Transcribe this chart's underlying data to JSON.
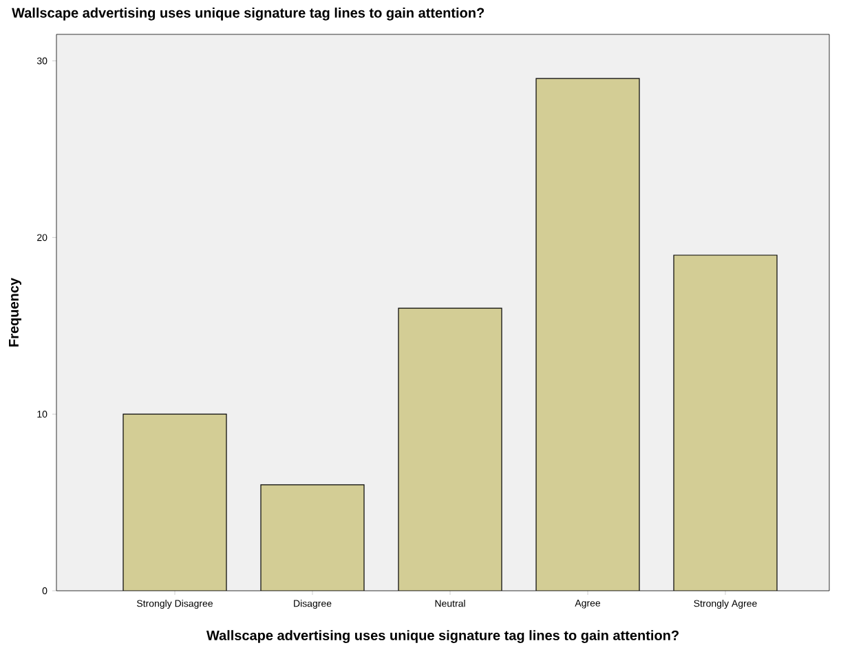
{
  "chart_data": {
    "type": "bar",
    "title": "Wallscape advertising uses unique signature tag lines to gain attention?",
    "xlabel": "Wallscape advertising uses unique signature tag lines to gain attention?",
    "ylabel": "Frequency",
    "categories": [
      "Strongly Disagree",
      "Disagree",
      "Neutral",
      "Agree",
      "Strongly Agree"
    ],
    "values": [
      10,
      6,
      16,
      29,
      19
    ],
    "color": "#d3cd95",
    "ylim": [
      0,
      31.5
    ],
    "yticks": [
      0,
      10,
      20,
      30
    ],
    "grid": false
  }
}
